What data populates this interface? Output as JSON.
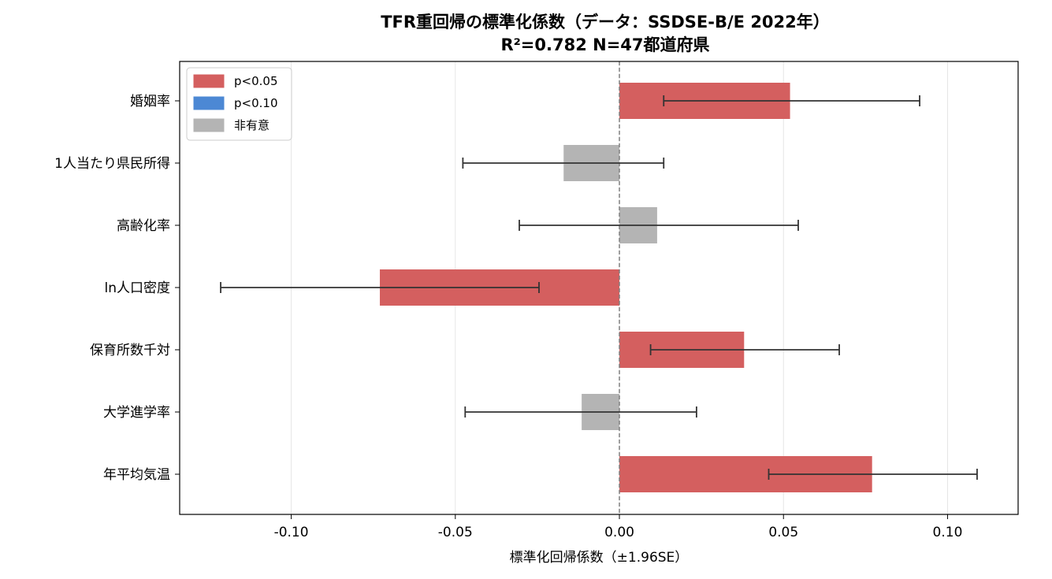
{
  "chart_data": {
    "type": "bar",
    "orientation": "horizontal",
    "title": "TFR重回帰の標準化係数（データ：SSDSE-B/E 2022年）",
    "subtitle": "R²=0.782 N=47都道府県",
    "xlabel": "標準化回帰係数（±1.96SE）",
    "ylabel": "",
    "xlim": [
      -0.134,
      0.1215
    ],
    "xticks": [
      -0.1,
      -0.05,
      0.0,
      0.05,
      0.1
    ],
    "xtick_labels": [
      "-0.10",
      "-0.05",
      "0.00",
      "0.05",
      "0.10"
    ],
    "grid": "vertical",
    "zero_line": "dashed",
    "legend_position": "top-left",
    "legend": [
      {
        "label": "p<0.05",
        "color": "#d45f5f"
      },
      {
        "label": "p<0.10",
        "color": "#4c88d4"
      },
      {
        "label": "非有意",
        "color": "#b4b4b4"
      }
    ],
    "categories": [
      "婚姻率",
      "1人当たり県民所得",
      "高齢化率",
      "ln人口密度",
      "保育所数千対",
      "大学進学率",
      "年平均気温"
    ],
    "values": [
      0.052,
      -0.017,
      0.0115,
      -0.073,
      0.038,
      -0.0115,
      0.077
    ],
    "err_low": [
      0.0135,
      -0.0477,
      -0.0305,
      -0.1215,
      0.0095,
      -0.047,
      0.0455
    ],
    "err_high": [
      0.0915,
      0.0135,
      0.0545,
      -0.0245,
      0.067,
      0.0235,
      0.109
    ],
    "significance": [
      "p<0.05",
      "ns",
      "ns",
      "p<0.05",
      "p<0.05",
      "ns",
      "p<0.05"
    ],
    "colors": {
      "p<0.05": "#d45f5f",
      "p<0.10": "#4c88d4",
      "ns": "#b4b4b4",
      "error_bar": "#333333",
      "grid": "#e6e6e6",
      "zero_line": "#808080"
    }
  }
}
